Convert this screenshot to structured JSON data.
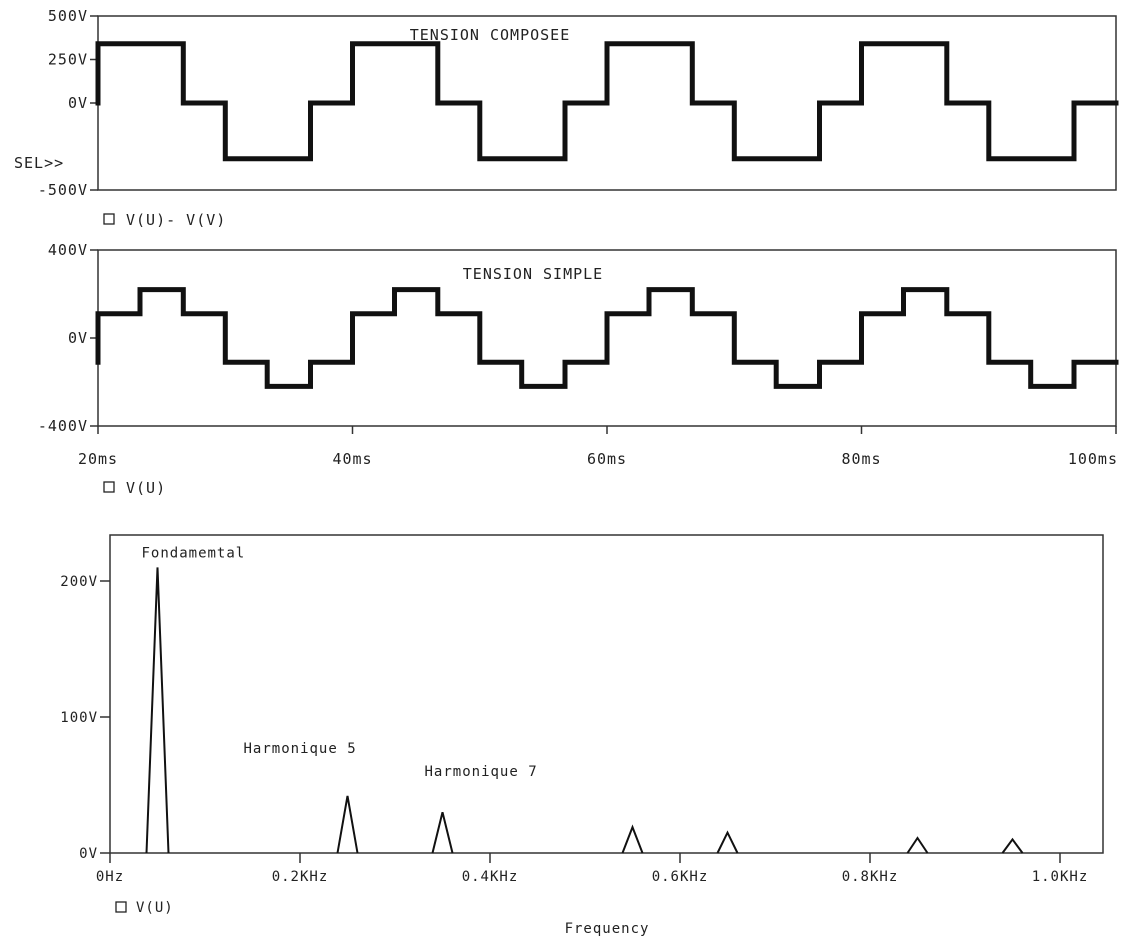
{
  "chart_data": [
    {
      "type": "line",
      "title": "TENSION COMPOSEE",
      "legend": "V(U)- V(V)",
      "cursor_label": "SEL>>",
      "ylim": [
        -500,
        500
      ],
      "y_ticks": [
        "500V",
        "250V",
        "0V",
        "-500V"
      ],
      "y_tick_values": [
        500,
        250,
        0,
        -500
      ],
      "series": [
        {
          "name": "V(U)- V(V)",
          "x_ms": [
            20,
            20,
            26.7,
            26.7,
            30,
            30,
            36.7,
            36.7,
            40,
            40,
            46.7,
            46.7,
            50,
            50,
            56.7,
            56.7,
            60,
            60,
            66.7,
            66.7,
            70,
            70,
            76.7,
            76.7,
            80,
            80,
            86.7,
            86.7,
            90,
            90,
            96.7,
            96.7,
            100
          ],
          "y": [
            0,
            340,
            340,
            0,
            0,
            -320,
            -320,
            0,
            0,
            340,
            340,
            0,
            0,
            -320,
            -320,
            0,
            0,
            340,
            340,
            0,
            0,
            -320,
            -320,
            0,
            0,
            340,
            340,
            0,
            0,
            -320,
            -320,
            0,
            0
          ]
        }
      ]
    },
    {
      "type": "line",
      "title": "TENSION SIMPLE",
      "legend": "V(U)",
      "ylim": [
        -400,
        400
      ],
      "y_ticks": [
        "400V",
        "0V",
        "-400V"
      ],
      "y_tick_values": [
        400,
        0,
        -400
      ],
      "xlim": [
        20,
        100
      ],
      "x_ticks": [
        "20ms",
        "40ms",
        "60ms",
        "80ms",
        "100ms"
      ],
      "x_tick_values": [
        20,
        40,
        60,
        80,
        100
      ],
      "series": [
        {
          "name": "V(U)",
          "x_ms": [
            20,
            20,
            23.3,
            23.3,
            26.7,
            26.7,
            30,
            30,
            33.3,
            33.3,
            36.7,
            36.7,
            40,
            40,
            43.3,
            43.3,
            46.7,
            46.7,
            50,
            50,
            53.3,
            53.3,
            56.7,
            56.7,
            60,
            60,
            63.3,
            63.3,
            66.7,
            66.7,
            70,
            70,
            73.3,
            73.3,
            76.7,
            76.7,
            80,
            80,
            83.3,
            83.3,
            86.7,
            86.7,
            90,
            90,
            93.3,
            93.3,
            96.7,
            96.7,
            100
          ],
          "y": [
            -110,
            110,
            110,
            220,
            220,
            110,
            110,
            -110,
            -110,
            -220,
            -220,
            -110,
            -110,
            110,
            110,
            220,
            220,
            110,
            110,
            -110,
            -110,
            -220,
            -220,
            -110,
            -110,
            110,
            110,
            220,
            220,
            110,
            110,
            -110,
            -110,
            -220,
            -220,
            -110,
            -110,
            110,
            110,
            220,
            220,
            110,
            110,
            -110,
            -110,
            -220,
            -220,
            -110,
            -110
          ]
        }
      ]
    },
    {
      "type": "line",
      "title": "",
      "xlabel": "Frequency",
      "legend": "V(U)",
      "xlim": [
        0,
        1050
      ],
      "ylim": [
        0,
        230
      ],
      "x_ticks": [
        "0Hz",
        "0.2KHz",
        "0.4KHz",
        "0.6KHz",
        "0.8KHz",
        "1.0KHz"
      ],
      "x_tick_values": [
        0,
        200,
        400,
        600,
        800,
        1000
      ],
      "y_ticks": [
        "0V",
        "100V",
        "200V"
      ],
      "y_tick_values": [
        0,
        100,
        200
      ],
      "peaks": [
        {
          "freq_hz": 50,
          "amplitude_v": 210,
          "label": "Fondamemtal"
        },
        {
          "freq_hz": 250,
          "amplitude_v": 42,
          "label": "Harmonique 5"
        },
        {
          "freq_hz": 350,
          "amplitude_v": 30,
          "label": "Harmonique 7"
        },
        {
          "freq_hz": 550,
          "amplitude_v": 19,
          "label": ""
        },
        {
          "freq_hz": 650,
          "amplitude_v": 15,
          "label": ""
        },
        {
          "freq_hz": 850,
          "amplitude_v": 11,
          "label": ""
        },
        {
          "freq_hz": 950,
          "amplitude_v": 10,
          "label": ""
        }
      ]
    }
  ]
}
